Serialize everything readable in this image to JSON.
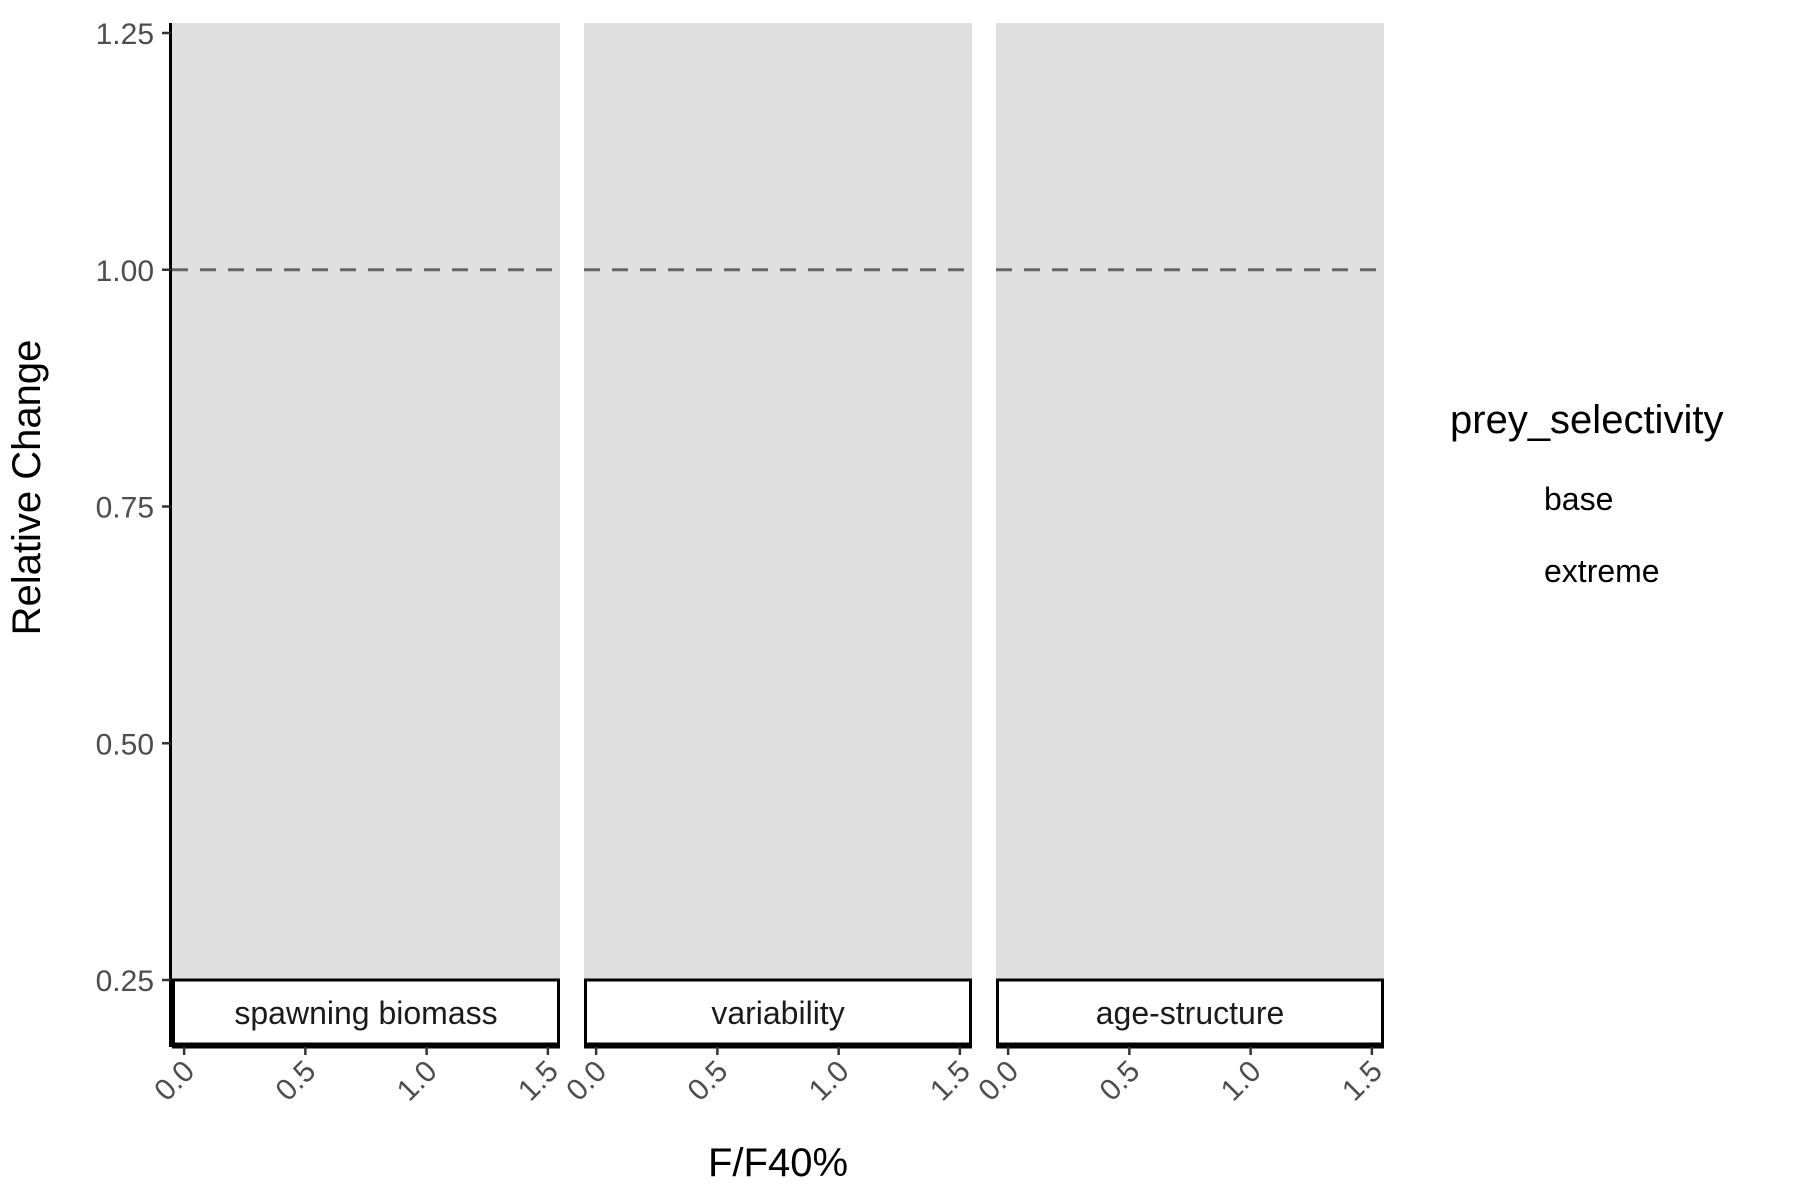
{
  "chart_data": {
    "type": "line",
    "xlabel": "F/F40%",
    "ylabel": "Relative Change",
    "xlim": [
      -0.05,
      1.55
    ],
    "ylim": [
      0.25,
      1.25
    ],
    "x_ticks": [
      0.0,
      0.5,
      1.0,
      1.5
    ],
    "x_tick_labels": [
      "0.0",
      "0.5",
      "1.0",
      "1.5"
    ],
    "y_ticks": [
      0.25,
      0.5,
      0.75,
      1.0,
      1.25
    ],
    "y_tick_labels": [
      "0.25",
      "0.50",
      "0.75",
      "1.00",
      "1.25"
    ],
    "reference_line": {
      "y": 1.0,
      "style": "dashed",
      "color": "#666666"
    },
    "facets": [
      {
        "label": "spawning biomass"
      },
      {
        "label": "variability"
      },
      {
        "label": "age-structure"
      }
    ],
    "legend": {
      "title": "prey_selectivity",
      "entries": [
        "base",
        "extreme"
      ],
      "placement": "right"
    },
    "series": [
      {
        "name": "base",
        "x": [],
        "values": []
      },
      {
        "name": "extreme",
        "x": [],
        "values": []
      }
    ],
    "panel_background": "#dfdfdf",
    "grid": false
  }
}
